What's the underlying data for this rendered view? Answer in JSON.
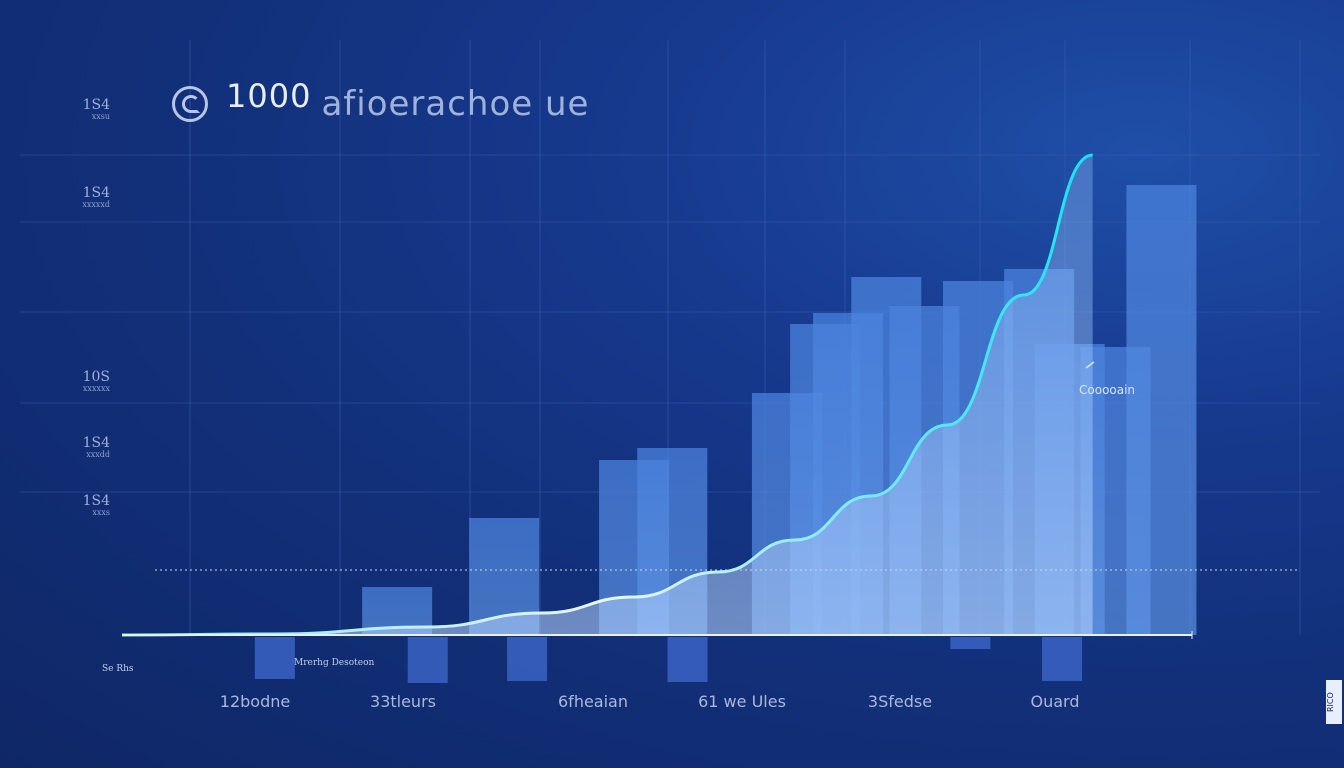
{
  "chart_data": {
    "type": "bar",
    "title": "1000 afioerachoe ue",
    "title_number": "1000",
    "title_text": "afioerachoe ue",
    "ylim": [
      0,
      480
    ],
    "y_ticks": [
      {
        "label": "1S4",
        "sub": "xxsu",
        "value": 520
      },
      {
        "label": "1S4",
        "sub": "xxxxxd",
        "value": 430
      },
      {
        "label": "10S",
        "sub": "xxxxxx",
        "value": 243
      },
      {
        "label": "1S4",
        "sub": "xxxdd",
        "value": 183
      },
      {
        "label": "1S4",
        "sub": "xxxs",
        "value": 128
      }
    ],
    "x_ticks": [
      "12bodne",
      "33tleurs",
      "6fheaian",
      "61 we Ules",
      "3Sfedse",
      "Ouard"
    ],
    "bars": [
      {
        "x": 0.36,
        "value": 48
      },
      {
        "x": 0.5,
        "value": 117
      },
      {
        "x": 0.67,
        "value": 175
      },
      {
        "x": 0.72,
        "value": 187
      },
      {
        "x": 0.87,
        "value": 242
      },
      {
        "x": 0.92,
        "value": 311
      },
      {
        "x": 0.95,
        "value": 322
      },
      {
        "x": 1.0,
        "value": 358
      },
      {
        "x": 1.05,
        "value": 329
      },
      {
        "x": 1.12,
        "value": 354
      },
      {
        "x": 1.2,
        "value": 366
      },
      {
        "x": 1.24,
        "value": 291
      },
      {
        "x": 1.3,
        "value": 288
      },
      {
        "x": 1.36,
        "value": 450
      }
    ],
    "neg_bars": [
      {
        "x": 0.2,
        "value": -42
      },
      {
        "x": 0.4,
        "value": -46
      },
      {
        "x": 0.53,
        "value": -44
      },
      {
        "x": 0.74,
        "value": -45
      },
      {
        "x": 1.11,
        "value": -12
      },
      {
        "x": 1.23,
        "value": -44
      }
    ],
    "curve": [
      [
        0,
        0
      ],
      [
        0.2,
        1
      ],
      [
        0.4,
        8
      ],
      [
        0.55,
        22
      ],
      [
        0.67,
        38
      ],
      [
        0.78,
        63
      ],
      [
        0.88,
        95
      ],
      [
        0.98,
        139
      ],
      [
        1.08,
        210
      ],
      [
        1.18,
        340
      ],
      [
        1.27,
        480
      ]
    ],
    "reference_value": 65,
    "annotation": "Cooooain",
    "neg_label": "Mrerhg Desoteon",
    "left_small_label": "Se Rhs",
    "xlim": [
      0,
      1.4
    ],
    "grid": true,
    "legend": "none",
    "colors": {
      "bar": "#4f86df",
      "curve": "#20e6ea",
      "axis": "#e9effc",
      "grid": "#3d5fae"
    }
  },
  "badge": "RICO"
}
